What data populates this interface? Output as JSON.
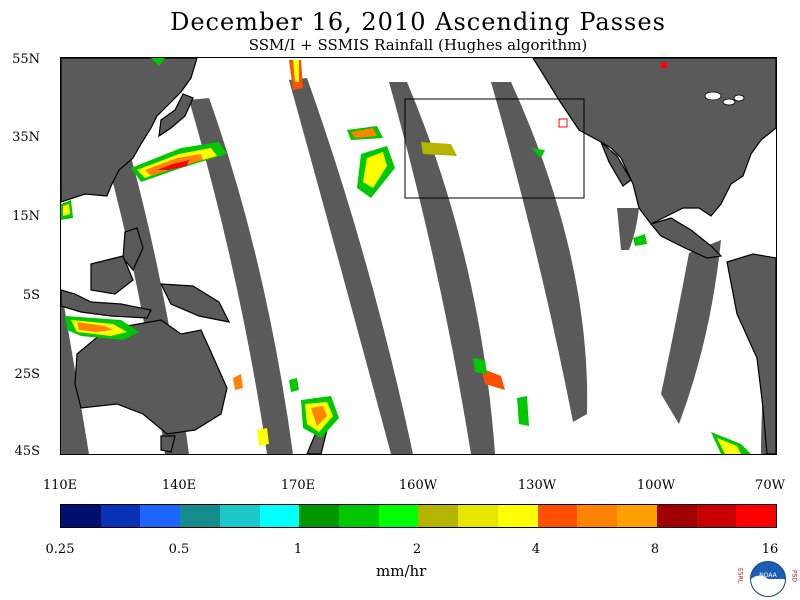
{
  "title": "December 16, 2010  Ascending Passes",
  "subtitle": "SSM/I + SSMIS Rainfall (Hughes algorithm)",
  "map": {
    "lat_labels": [
      "55N",
      "35N",
      "15N",
      "5S",
      "25S",
      "45S"
    ],
    "lon_labels": [
      "110E",
      "140E",
      "170E",
      "160W",
      "130W",
      "100W",
      "70W"
    ],
    "land_color": "#5a5a5a",
    "ocean_color": "#ffffff",
    "swath_gap_color": "#5a5a5a"
  },
  "colorbar": {
    "colors": [
      "#000f6e",
      "#0a32b4",
      "#1e64ff",
      "#148c8c",
      "#1cc8c8",
      "#00ffff",
      "#009600",
      "#00c800",
      "#00ff00",
      "#b4b400",
      "#e6e600",
      "#ffff00",
      "#ff5000",
      "#ff8200",
      "#ffa000",
      "#a00000",
      "#c80000",
      "#ff0000"
    ],
    "ticks": [
      "0.25",
      "0.5",
      "1",
      "2",
      "4",
      "8",
      "16"
    ],
    "units": "mm/hr"
  },
  "logo": {
    "left_text": "ESRL",
    "right_text": "PSD",
    "center_text": "NOAA"
  }
}
